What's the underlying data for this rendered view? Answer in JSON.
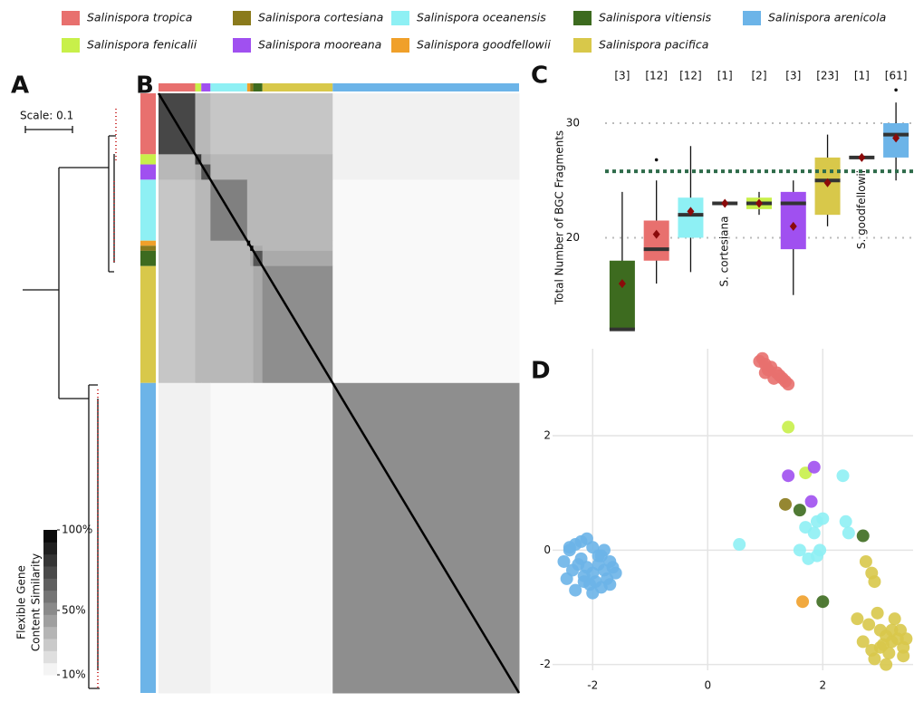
{
  "species": [
    {
      "name": "Salinispora tropica",
      "color": "#e8706e"
    },
    {
      "name": "Salinispora cortesiana",
      "color": "#8a7a1c"
    },
    {
      "name": "Salinispora oceanensis",
      "color": "#8ef0f4"
    },
    {
      "name": "Salinispora vitiensis",
      "color": "#3d6b1f"
    },
    {
      "name": "Salinispora arenicola",
      "color": "#6cb4e8"
    },
    {
      "name": "Salinispora fenicalii",
      "color": "#c8f04a"
    },
    {
      "name": "Salinispora mooreana",
      "color": "#a050f0"
    },
    {
      "name": "Salinispora goodfellowii",
      "color": "#f0a02a"
    },
    {
      "name": "Salinispora pacifica",
      "color": "#d8c84a"
    }
  ],
  "panels": {
    "a": "A",
    "b": "B",
    "c": "C",
    "d": "D"
  },
  "tree": {
    "scale_label": "Scale: 0.1"
  },
  "chart_data": [
    {
      "type": "heatmap",
      "order": [
        "Salinispora tropica",
        "Salinispora fenicalii",
        "Salinispora mooreana",
        "Salinispora oceanensis",
        "Salinispora goodfellowii",
        "Salinispora cortesiana",
        "Salinispora vitiensis",
        "Salinispora pacifica",
        "Salinispora arenicola"
      ],
      "matrix": [
        [
          75,
          35,
          35,
          30,
          30,
          30,
          30,
          30,
          15
        ],
        [
          35,
          80,
          40,
          35,
          35,
          35,
          35,
          35,
          15
        ],
        [
          35,
          40,
          70,
          35,
          35,
          35,
          35,
          35,
          15
        ],
        [
          30,
          35,
          35,
          55,
          35,
          35,
          35,
          35,
          12
        ],
        [
          30,
          35,
          35,
          35,
          100,
          35,
          35,
          35,
          12
        ],
        [
          30,
          35,
          35,
          35,
          35,
          100,
          40,
          35,
          12
        ],
        [
          30,
          35,
          35,
          35,
          35,
          40,
          70,
          40,
          12
        ],
        [
          30,
          35,
          35,
          35,
          35,
          35,
          40,
          50,
          12
        ],
        [
          15,
          15,
          15,
          12,
          12,
          12,
          12,
          12,
          50
        ]
      ],
      "clim": [
        10,
        100
      ],
      "cticks": [
        {
          "value": 100,
          "label": "100%"
        },
        {
          "value": 50,
          "label": "50%"
        },
        {
          "value": 10,
          "label": "10%"
        }
      ],
      "colorbar_label": [
        "Flexible Gene",
        "Content Similarity"
      ]
    },
    {
      "type": "box",
      "ylabel": "Total Number of BGC Fragments",
      "ylim": [
        11.5,
        33
      ],
      "yticks": [
        20,
        30
      ],
      "grid": true,
      "reference_line": 25.8,
      "boxes": [
        {
          "name": "Salinispora vitiensis",
          "n": 3,
          "n_label": "[3]",
          "low": 12,
          "q1": 12,
          "median": 12,
          "q3": 18,
          "high": 24,
          "mean": 16,
          "outliers": []
        },
        {
          "name": "Salinispora tropica",
          "n": 12,
          "n_label": "[12]",
          "low": 16,
          "q1": 18,
          "median": 19,
          "q3": 21.5,
          "high": 25,
          "mean": 20.3,
          "outliers": [
            26.8
          ]
        },
        {
          "name": "Salinispora oceanensis",
          "n": 12,
          "n_label": "[12]",
          "low": 17,
          "q1": 20,
          "median": 22,
          "q3": 23.5,
          "high": 28,
          "mean": 22.3,
          "outliers": []
        },
        {
          "name": "Salinispora cortesiana",
          "n": 1,
          "n_label": "[1]",
          "low": 23,
          "q1": 23,
          "median": 23,
          "q3": 23,
          "high": 23,
          "mean": 23,
          "outliers": [],
          "annotation": "S. cortesiana"
        },
        {
          "name": "Salinispora fenicalii",
          "n": 2,
          "n_label": "[2]",
          "low": 22,
          "q1": 22.5,
          "median": 23,
          "q3": 23.5,
          "high": 24,
          "mean": 23,
          "outliers": []
        },
        {
          "name": "Salinispora mooreana",
          "n": 3,
          "n_label": "[3]",
          "low": 15,
          "q1": 19,
          "median": 23,
          "q3": 24,
          "high": 25,
          "mean": 21,
          "outliers": []
        },
        {
          "name": "Salinispora pacifica",
          "n": 23,
          "n_label": "[23]",
          "low": 21,
          "q1": 22,
          "median": 25,
          "q3": 27,
          "high": 29,
          "mean": 24.8,
          "outliers": []
        },
        {
          "name": "Salinispora goodfellowii",
          "n": 1,
          "n_label": "[1]",
          "low": 27,
          "q1": 27,
          "median": 27,
          "q3": 27,
          "high": 27,
          "mean": 27,
          "outliers": [],
          "annotation": "S. goodfellowii"
        },
        {
          "name": "Salinispora arenicola",
          "n": 61,
          "n_label": "[61]",
          "low": 25,
          "q1": 27,
          "median": 29,
          "q3": 30,
          "high": 31.8,
          "mean": 28.7,
          "outliers": [
            32.9
          ]
        }
      ]
    },
    {
      "type": "scatter",
      "xlim": [
        -2.98,
        3.57
      ],
      "ylim": [
        -2.1,
        3.52
      ],
      "xticks": [
        -2,
        0,
        2
      ],
      "yticks": [
        -2,
        0,
        2
      ],
      "grid": true,
      "series": [
        {
          "name": "Salinispora tropica",
          "x": [
            0.9,
            1.0,
            1.1,
            1.2,
            1.3,
            1.4,
            1.0,
            1.15,
            1.25,
            0.95,
            1.35,
            1.05
          ],
          "y": [
            3.3,
            3.25,
            3.2,
            3.1,
            3.0,
            2.9,
            3.1,
            3.0,
            3.05,
            3.35,
            2.95,
            3.15
          ]
        },
        {
          "name": "Salinispora fenicalii",
          "x": [
            1.4,
            1.7
          ],
          "y": [
            2.15,
            1.35
          ]
        },
        {
          "name": "Salinispora mooreana",
          "x": [
            1.4,
            1.85,
            1.8
          ],
          "y": [
            1.3,
            1.45,
            0.85
          ]
        },
        {
          "name": "Salinispora vitiensis",
          "x": [
            1.6,
            2.0,
            2.7
          ],
          "y": [
            0.7,
            -0.9,
            0.25
          ]
        },
        {
          "name": "Salinispora cortesiana",
          "x": [
            1.35
          ],
          "y": [
            0.8
          ]
        },
        {
          "name": "Salinispora goodfellowii",
          "x": [
            1.65
          ],
          "y": [
            -0.9
          ]
        },
        {
          "name": "Salinispora oceanensis",
          "x": [
            0.55,
            2.35,
            1.7,
            1.9,
            2.0,
            1.85,
            1.6,
            1.9,
            1.95,
            2.4,
            2.45,
            1.75
          ],
          "y": [
            0.1,
            1.3,
            0.4,
            0.5,
            0.55,
            0.3,
            0.0,
            -0.1,
            0.0,
            0.5,
            0.3,
            -0.15
          ]
        },
        {
          "name": "Salinispora pacifica",
          "x": [
            2.75,
            2.85,
            2.9,
            2.6,
            2.8,
            3.0,
            3.1,
            3.2,
            3.3,
            3.4,
            3.05,
            3.15,
            2.9,
            3.0,
            3.35,
            3.45,
            3.25,
            2.7,
            3.1,
            2.95,
            3.4,
            3.2,
            2.85
          ],
          "y": [
            -0.2,
            -0.4,
            -0.55,
            -1.2,
            -1.3,
            -1.4,
            -1.5,
            -1.6,
            -1.55,
            -1.7,
            -1.65,
            -1.8,
            -1.9,
            -1.7,
            -1.4,
            -1.55,
            -1.2,
            -1.6,
            -2.0,
            -1.1,
            -1.85,
            -1.4,
            -1.75
          ]
        },
        {
          "name": "Salinispora arenicola",
          "x": [
            -2.5,
            -2.4,
            -2.3,
            -2.2,
            -2.1,
            -2.0,
            -1.9,
            -1.8,
            -1.7,
            -1.6,
            -2.45,
            -2.35,
            -2.25,
            -2.15,
            -2.05,
            -1.95,
            -1.85,
            -1.75,
            -1.65,
            -2.3,
            -2.2,
            -2.1,
            -2.0,
            -1.9,
            -1.8,
            -2.4,
            -2.0,
            -1.7,
            -2.15,
            -1.85
          ],
          "y": [
            -0.2,
            0.0,
            0.1,
            0.15,
            0.2,
            0.05,
            -0.1,
            0.0,
            -0.2,
            -0.4,
            -0.5,
            -0.35,
            -0.25,
            -0.45,
            -0.6,
            -0.55,
            -0.65,
            -0.5,
            -0.3,
            -0.7,
            -0.15,
            -0.3,
            -0.4,
            -0.25,
            -0.35,
            0.05,
            -0.75,
            -0.6,
            -0.55,
            -0.1
          ]
        }
      ]
    }
  ]
}
